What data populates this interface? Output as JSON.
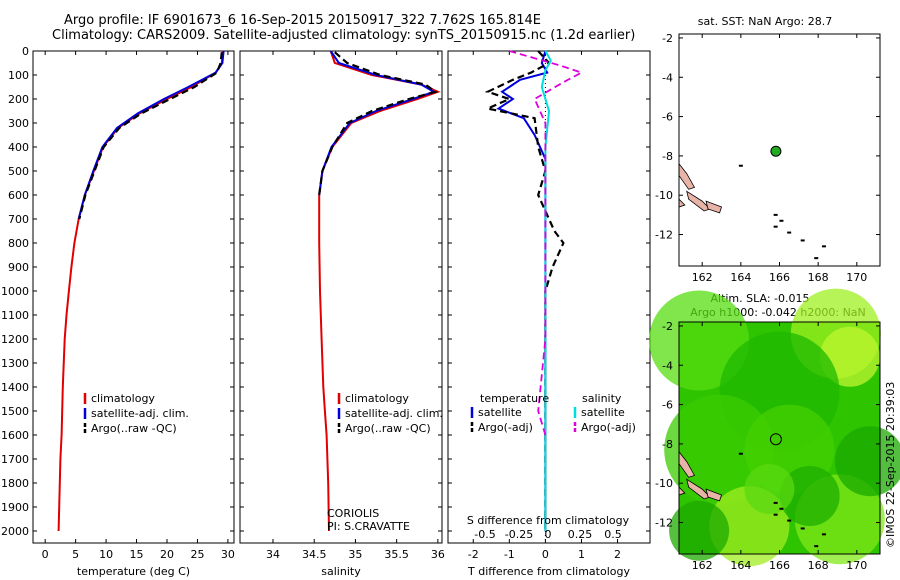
{
  "header": {
    "title_line1": "Argo profile: IF 6901673_6 16-Sep-2015 20150917_322 7.762S 165.814E",
    "title_line2": "Climatology: CARS2009. Satellite-adjusted climatology: synTS_20150915.nc (1.2d earlier)"
  },
  "footer": {
    "credit": "©IMOS 22-Sep-2015 20:39:03"
  },
  "colors": {
    "climatology": "#e00000",
    "satellite_temp": "#0000dd",
    "argo": "#000000",
    "satellite_sal": "#00dddd",
    "argo_sal_diff": "#dd00dd",
    "sst_map_land": "#e8b4a8",
    "sla_map_green": "#22cc00"
  },
  "chart_data": [
    {
      "type": "line",
      "panel": "temperature",
      "xlabel": "temperature (deg C)",
      "ylim": [
        2050,
        0
      ],
      "xlim": [
        -2,
        31
      ],
      "xticks": [
        0,
        5,
        10,
        15,
        20,
        25,
        30
      ],
      "yticks": [
        0,
        100,
        200,
        300,
        400,
        500,
        600,
        700,
        800,
        900,
        1000,
        1100,
        1200,
        1300,
        1400,
        1500,
        1600,
        1700,
        1800,
        1900,
        2000
      ],
      "legend": [
        "climatology",
        "satellite-adj. clim.",
        "Argo(..raw -QC)"
      ],
      "series": [
        {
          "name": "climatology",
          "x": [
            29.2,
            29.0,
            28.0,
            24.0,
            20.0,
            15.5,
            12.0,
            9.5,
            8.0,
            6.5,
            5.5,
            4.8,
            4.3,
            3.9,
            3.5,
            3.2,
            2.9,
            2.7,
            2.5,
            2.4,
            2.3,
            2.2
          ],
          "y": [
            0,
            50,
            90,
            150,
            200,
            260,
            320,
            400,
            500,
            600,
            700,
            800,
            900,
            1000,
            1100,
            1200,
            1400,
            1600,
            1700,
            1800,
            1900,
            2000
          ]
        },
        {
          "name": "satellite-adj. clim.",
          "x": [
            29.3,
            29.1,
            28.0,
            23.5,
            19.5,
            15.2,
            11.8,
            9.4,
            7.9,
            6.5,
            5.5
          ],
          "y": [
            0,
            50,
            90,
            150,
            200,
            260,
            320,
            400,
            500,
            600,
            700
          ]
        },
        {
          "name": "Argo(..raw -QC)",
          "x": [
            29.0,
            28.8,
            28.2,
            24.5,
            20.5,
            15.8,
            12.2,
            9.6,
            8.1,
            6.6,
            5.6
          ],
          "y": [
            5,
            50,
            90,
            150,
            200,
            260,
            320,
            400,
            500,
            600,
            700
          ]
        }
      ]
    },
    {
      "type": "line",
      "panel": "salinity",
      "xlabel": "salinity",
      "ylim": [
        2050,
        0
      ],
      "xlim": [
        33.6,
        36.05
      ],
      "xticks": [
        34,
        34.5,
        35,
        35.5,
        36
      ],
      "xtick_labels": [
        "34",
        "34.5",
        "35",
        "35.5",
        "36"
      ],
      "legend": [
        "climatology",
        "satellite-adj. clim.",
        "Argo(..raw -QC)"
      ],
      "annotation": [
        "CORIOLIS",
        "PI: S.CRAVATTE"
      ],
      "series": [
        {
          "name": "climatology",
          "x": [
            34.7,
            34.75,
            35.2,
            35.8,
            36.0,
            35.75,
            35.3,
            34.95,
            34.72,
            34.6,
            34.56,
            34.56,
            34.57,
            34.59,
            34.61,
            34.63,
            34.65,
            34.66,
            34.67,
            34.68
          ],
          "y": [
            0,
            50,
            100,
            140,
            170,
            200,
            250,
            300,
            400,
            500,
            600,
            800,
            1000,
            1200,
            1400,
            1500,
            1600,
            1700,
            1800,
            2000
          ]
        },
        {
          "name": "satellite-adj. clim.",
          "x": [
            34.7,
            34.8,
            35.25,
            35.8,
            35.95,
            35.7,
            35.25,
            34.93,
            34.71,
            34.6,
            34.56
          ],
          "y": [
            0,
            50,
            100,
            140,
            170,
            200,
            250,
            300,
            400,
            500,
            600
          ]
        },
        {
          "name": "Argo(..raw -QC)",
          "x": [
            34.75,
            34.9,
            35.3,
            35.85,
            35.97,
            35.65,
            35.2,
            34.9,
            34.72,
            34.6,
            34.56
          ],
          "y": [
            5,
            50,
            100,
            140,
            170,
            200,
            250,
            300,
            400,
            500,
            600
          ]
        }
      ]
    },
    {
      "type": "line",
      "panel": "difference",
      "xlabel_top": "S difference from climatology",
      "xlabel": "T difference from climatology",
      "ylim": [
        2050,
        0
      ],
      "xlim": [
        -2.7,
        2.9
      ],
      "xticks": [
        -2,
        -1,
        0,
        1,
        2
      ],
      "sticks_top": [
        "-0.5",
        "-0.25",
        "0",
        "0.25",
        "0.5"
      ],
      "legend_headers": [
        "temperature",
        "salinity"
      ],
      "legend": [
        "satellite",
        "Argo(-adj)",
        "satellite",
        "Argo(-adj)"
      ],
      "series": [
        {
          "name": "temperature satellite",
          "x": [
            0.0,
            -0.1,
            0.05,
            -0.7,
            -1.2,
            -0.9,
            -1.3,
            -0.6,
            -0.3,
            0.0,
            0.0,
            0.0
          ],
          "y": [
            0,
            50,
            90,
            120,
            170,
            200,
            240,
            280,
            350,
            450,
            600,
            2000
          ]
        },
        {
          "name": "temperature Argo(-adj)",
          "x": [
            -0.2,
            0.1,
            -0.4,
            -0.9,
            -1.6,
            -1.0,
            -1.6,
            -0.3,
            -0.2,
            0.0,
            -0.2,
            0.25,
            0.5,
            0.2,
            0.0,
            0.0
          ],
          "y": [
            0,
            50,
            90,
            120,
            170,
            200,
            240,
            280,
            400,
            500,
            600,
            750,
            800,
            900,
            1000,
            2000
          ]
        },
        {
          "name": "salinity satellite",
          "x": [
            0.0,
            0.15,
            0.0,
            -0.1,
            0.1,
            0.0,
            0.0
          ],
          "y": [
            0,
            40,
            80,
            150,
            250,
            400,
            2000
          ]
        },
        {
          "name": "salinity Argo(-adj)",
          "x": [
            -1.0,
            0.4,
            1.0,
            0.5,
            -0.3,
            0.0,
            0.0,
            -0.2,
            0.0
          ],
          "y": [
            0,
            60,
            90,
            130,
            200,
            300,
            1200,
            1500,
            1600
          ]
        }
      ]
    },
    {
      "type": "scatter",
      "panel": "sst_map",
      "title": "sat. SST: NaN Argo: 28.7",
      "xlim": [
        160.8,
        171.2
      ],
      "ylim": [
        -13.6,
        -1.8
      ],
      "xticks": [
        162,
        164,
        166,
        168,
        170
      ],
      "yticks": [
        -2,
        -4,
        -6,
        -8,
        -10,
        -12
      ],
      "marker": {
        "lon": 165.814,
        "lat": -7.762
      }
    },
    {
      "type": "heatmap",
      "panel": "sla_map",
      "title_line1": "Altim. SLA: -0.015",
      "title_line2": "Argo h1000: -0.042 h2000: NaN",
      "xlim": [
        160.8,
        171.2
      ],
      "ylim": [
        -13.6,
        -1.8
      ],
      "xticks": [
        162,
        164,
        166,
        168,
        170
      ],
      "yticks": [
        -2,
        -4,
        -6,
        -8,
        -10,
        -12
      ],
      "marker": {
        "lon": 165.814,
        "lat": -7.762
      }
    }
  ]
}
